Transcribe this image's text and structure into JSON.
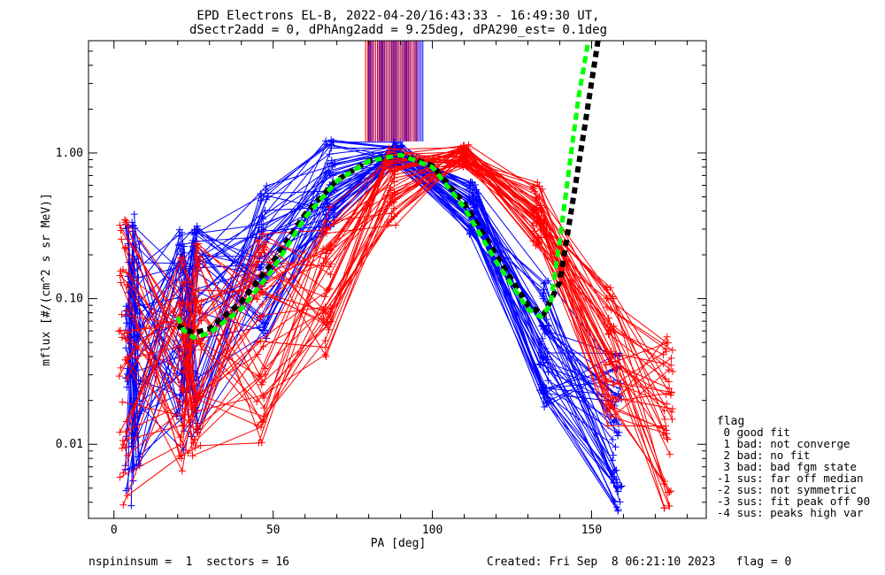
{
  "chart_data": {
    "type": "line",
    "title": "EPD Electrons EL-B, 2022-04-20/16:43:33 - 16:49:30 UT,",
    "subtitle": "dSectr2add = 0, dPhAng2add = 9.25deg, dPA290_est=   0.1deg",
    "xlabel": "PA [deg]",
    "ylabel": "mflux [#/(cm^2 s sr MeV)]",
    "xlim": [
      -8,
      186
    ],
    "ylim": [
      0.0031,
      5.9
    ],
    "yscale": "log",
    "x_ticks": [
      0,
      50,
      100,
      150
    ],
    "x_tick_labels": [
      "0",
      "50",
      "100",
      "150"
    ],
    "y_ticks": [
      0.01,
      0.1,
      1.0
    ],
    "y_tick_labels": [
      "0.01",
      "0.10",
      "1.00"
    ],
    "grid": false,
    "bins": {
      "pa_blue": [
        5,
        7,
        21,
        25,
        47,
        68,
        89,
        113,
        135,
        158
      ],
      "pa_red": [
        3,
        22,
        26,
        46,
        67,
        87,
        110,
        133,
        156,
        174
      ],
      "blue_profile": [
        0.035,
        0.045,
        0.05,
        0.06,
        0.17,
        0.62,
        1.0,
        0.42,
        0.05,
        0.012
      ],
      "red_profile": [
        0.038,
        0.04,
        0.045,
        0.055,
        0.14,
        0.6,
        0.95,
        0.38,
        0.04,
        0.014
      ],
      "blue_spread": [
        1.1,
        0.85,
        0.8,
        0.75,
        0.55,
        0.3,
        0.08,
        0.2,
        0.45,
        0.55
      ],
      "red_spread": [
        1.0,
        0.8,
        0.75,
        0.75,
        0.55,
        0.3,
        0.08,
        0.22,
        0.5,
        0.6
      ]
    },
    "series": [
      {
        "name": "",
        "color": "#0000ff",
        "style": "solid",
        "marker": "plus",
        "count": 48
      },
      {
        "name": "",
        "color": "#ff0000",
        "style": "solid",
        "marker": "plus",
        "count": 42
      },
      {
        "name": "",
        "color": "#000000",
        "style": "dashed",
        "x": [
          20,
          25,
          30,
          40,
          50,
          60,
          70,
          80,
          90,
          100,
          110,
          120,
          130,
          135,
          140,
          144,
          148,
          152
        ],
        "y": [
          0.065,
          0.058,
          0.062,
          0.095,
          0.18,
          0.38,
          0.65,
          0.88,
          0.97,
          0.82,
          0.45,
          0.2,
          0.09,
          0.078,
          0.13,
          0.45,
          1.6,
          5.9
        ]
      },
      {
        "name": "",
        "color": "#00ff00",
        "style": "dashed",
        "x": [
          20,
          22,
          25,
          30,
          40,
          50,
          60,
          70,
          80,
          90,
          100,
          110,
          120,
          130,
          134,
          137,
          140,
          143,
          146,
          149
        ],
        "y": [
          0.075,
          0.06,
          0.054,
          0.058,
          0.085,
          0.16,
          0.36,
          0.64,
          0.88,
          0.97,
          0.8,
          0.42,
          0.18,
          0.085,
          0.075,
          0.09,
          0.25,
          0.8,
          2.5,
          5.9
        ]
      },
      {
        "name": "",
        "color": "#0000ff",
        "style": "vertical-lines",
        "x_range": [
          80,
          97
        ],
        "y_range": [
          1.2,
          5.9
        ],
        "count": 32
      },
      {
        "name": "",
        "color": "#ff0000",
        "style": "vertical-lines",
        "x_range": [
          79,
          95
        ],
        "y_range": [
          1.2,
          5.9
        ],
        "count": 26
      }
    ],
    "legend": {
      "placement": "right",
      "title": "flag",
      "entries": [
        " 0 good fit",
        " 1 bad: not converge",
        " 2 bad: no fit",
        " 3 bad: bad fgm state",
        "-1 sus: far off median",
        "-2 sus: not symmetric",
        "-3 sus: fit peak off 90",
        "-4 sus: peaks high var"
      ]
    },
    "footer": {
      "left": "nspininsum =  1  sectors = 16",
      "right": "Created: Fri Sep  8 06:21:10 2023   flag = 0"
    }
  }
}
